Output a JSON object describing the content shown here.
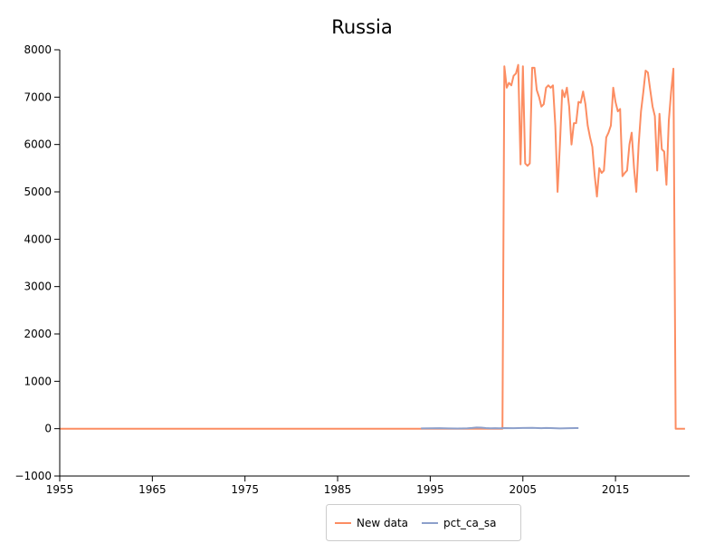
{
  "chart_data": {
    "type": "line",
    "title": "Russia",
    "xlabel": "",
    "ylabel": "",
    "xlim": [
      1955,
      2023
    ],
    "ylim": [
      -1000,
      8000
    ],
    "xticks": [
      1955,
      1965,
      1975,
      1985,
      1995,
      2005,
      2015
    ],
    "yticks": [
      -1000,
      0,
      1000,
      2000,
      3000,
      4000,
      5000,
      6000,
      7000,
      8000
    ],
    "grid": false,
    "legend_position": "bottom-center",
    "series": [
      {
        "name": "New data",
        "color": "#fc8d62",
        "points": [
          [
            1955,
            0
          ],
          [
            2002.8,
            0
          ],
          [
            2003.0,
            7650
          ],
          [
            2003.25,
            7200
          ],
          [
            2003.5,
            7300
          ],
          [
            2003.75,
            7250
          ],
          [
            2004.0,
            7450
          ],
          [
            2004.25,
            7500
          ],
          [
            2004.5,
            7680
          ],
          [
            2004.75,
            5580
          ],
          [
            2005.0,
            7650
          ],
          [
            2005.25,
            5600
          ],
          [
            2005.5,
            5550
          ],
          [
            2005.75,
            5600
          ],
          [
            2006.0,
            7620
          ],
          [
            2006.25,
            7620
          ],
          [
            2006.5,
            7150
          ],
          [
            2006.75,
            7000
          ],
          [
            2007.0,
            6800
          ],
          [
            2007.25,
            6850
          ],
          [
            2007.5,
            7200
          ],
          [
            2007.75,
            7250
          ],
          [
            2008.0,
            7200
          ],
          [
            2008.25,
            7250
          ],
          [
            2008.5,
            6400
          ],
          [
            2008.75,
            5000
          ],
          [
            2009.0,
            6000
          ],
          [
            2009.25,
            7150
          ],
          [
            2009.5,
            7000
          ],
          [
            2009.75,
            7200
          ],
          [
            2010.0,
            6800
          ],
          [
            2010.25,
            6000
          ],
          [
            2010.5,
            6450
          ],
          [
            2010.75,
            6450
          ],
          [
            2011.0,
            6900
          ],
          [
            2011.25,
            6880
          ],
          [
            2011.5,
            7120
          ],
          [
            2011.75,
            6850
          ],
          [
            2012.0,
            6400
          ],
          [
            2012.25,
            6150
          ],
          [
            2012.5,
            5950
          ],
          [
            2012.75,
            5350
          ],
          [
            2013.0,
            4900
          ],
          [
            2013.25,
            5500
          ],
          [
            2013.5,
            5400
          ],
          [
            2013.75,
            5450
          ],
          [
            2014.0,
            6150
          ],
          [
            2014.25,
            6250
          ],
          [
            2014.5,
            6400
          ],
          [
            2014.75,
            7200
          ],
          [
            2015.0,
            6900
          ],
          [
            2015.25,
            6700
          ],
          [
            2015.5,
            6750
          ],
          [
            2015.75,
            5330
          ],
          [
            2016.0,
            5400
          ],
          [
            2016.25,
            5450
          ],
          [
            2016.5,
            6000
          ],
          [
            2016.75,
            6250
          ],
          [
            2017.0,
            5500
          ],
          [
            2017.25,
            5000
          ],
          [
            2017.5,
            6000
          ],
          [
            2017.75,
            6700
          ],
          [
            2018.0,
            7100
          ],
          [
            2018.25,
            7560
          ],
          [
            2018.5,
            7520
          ],
          [
            2018.75,
            7150
          ],
          [
            2019.0,
            6800
          ],
          [
            2019.25,
            6600
          ],
          [
            2019.5,
            5450
          ],
          [
            2019.75,
            6650
          ],
          [
            2020.0,
            5900
          ],
          [
            2020.25,
            5850
          ],
          [
            2020.5,
            5150
          ],
          [
            2020.75,
            6500
          ],
          [
            2021.0,
            7100
          ],
          [
            2021.25,
            7600
          ],
          [
            2021.5,
            0
          ],
          [
            2022.5,
            0
          ]
        ]
      },
      {
        "name": "pct_ca_sa",
        "color": "#8da0cb",
        "points": [
          [
            1994,
            5
          ],
          [
            1995,
            8
          ],
          [
            1996,
            10
          ],
          [
            1997,
            6
          ],
          [
            1998,
            4
          ],
          [
            1999,
            8
          ],
          [
            1999.5,
            15
          ],
          [
            2000,
            25
          ],
          [
            2000.5,
            22
          ],
          [
            2001,
            12
          ],
          [
            2001.5,
            8
          ],
          [
            2002,
            10
          ],
          [
            2002.5,
            8
          ],
          [
            2003,
            12
          ],
          [
            2004,
            10
          ],
          [
            2005,
            15
          ],
          [
            2006,
            18
          ],
          [
            2007,
            10
          ],
          [
            2007.5,
            15
          ],
          [
            2008,
            12
          ],
          [
            2009,
            5
          ],
          [
            2010,
            10
          ],
          [
            2011,
            12
          ]
        ]
      }
    ]
  }
}
